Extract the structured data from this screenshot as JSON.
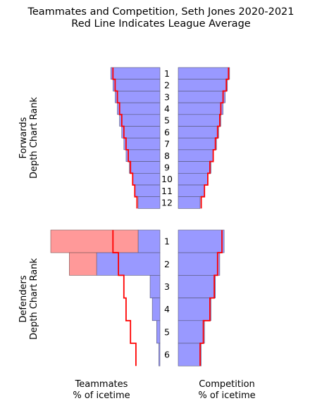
{
  "title": "Teammates and Competition, Seth Jones 2020-2021",
  "subtitle": "Red Line Indicates League Average",
  "chart_data": {
    "type": "bar",
    "forwards": {
      "ylabel_1": "Forwards",
      "ylabel_2": "Depth Chart Rank",
      "ranks": [
        "1",
        "2",
        "3",
        "4",
        "5",
        "6",
        "7",
        "8",
        "9",
        "10",
        "11",
        "12"
      ],
      "teammates": [
        0.45,
        0.43,
        0.41,
        0.39,
        0.37,
        0.35,
        0.33,
        0.31,
        0.28,
        0.25,
        0.23,
        0.2
      ],
      "teammates_league_avg": [
        0.43,
        0.41,
        0.39,
        0.37,
        0.35,
        0.33,
        0.31,
        0.29,
        0.27,
        0.25,
        0.23,
        0.21
      ],
      "competition": [
        0.47,
        0.45,
        0.43,
        0.41,
        0.39,
        0.37,
        0.35,
        0.32,
        0.3,
        0.27,
        0.24,
        0.2
      ],
      "competition_league_avg": [
        0.46,
        0.44,
        0.41,
        0.39,
        0.38,
        0.36,
        0.34,
        0.32,
        0.29,
        0.27,
        0.24,
        0.21
      ]
    },
    "defenders": {
      "ylabel_1": "Defenders",
      "ylabel_2": "Depth Chart Rank",
      "ranks": [
        "1",
        "2",
        "3",
        "4",
        "5",
        "6"
      ],
      "teammates": [
        0.2,
        0.58,
        0.09,
        0.07,
        0.03,
        0.01
      ],
      "teammates_excess": [
        0.8,
        0.25,
        0.0,
        0.0,
        0.0,
        0.0
      ],
      "teammates_league_avg": [
        0.43,
        0.38,
        0.33,
        0.31,
        0.27,
        0.22
      ],
      "competition": [
        0.42,
        0.38,
        0.34,
        0.3,
        0.24,
        0.21
      ],
      "competition_league_avg": [
        0.4,
        0.36,
        0.33,
        0.29,
        0.23,
        0.2
      ]
    },
    "xlabel_left_1": "Teammates",
    "xlabel_left_2": "% of icetime",
    "xlabel_right_1": "Competition",
    "xlabel_right_2": "% of icetime",
    "bar_color": "#9999ff",
    "excess_color": "#ff9999",
    "league_avg_color": "#ff0000"
  }
}
